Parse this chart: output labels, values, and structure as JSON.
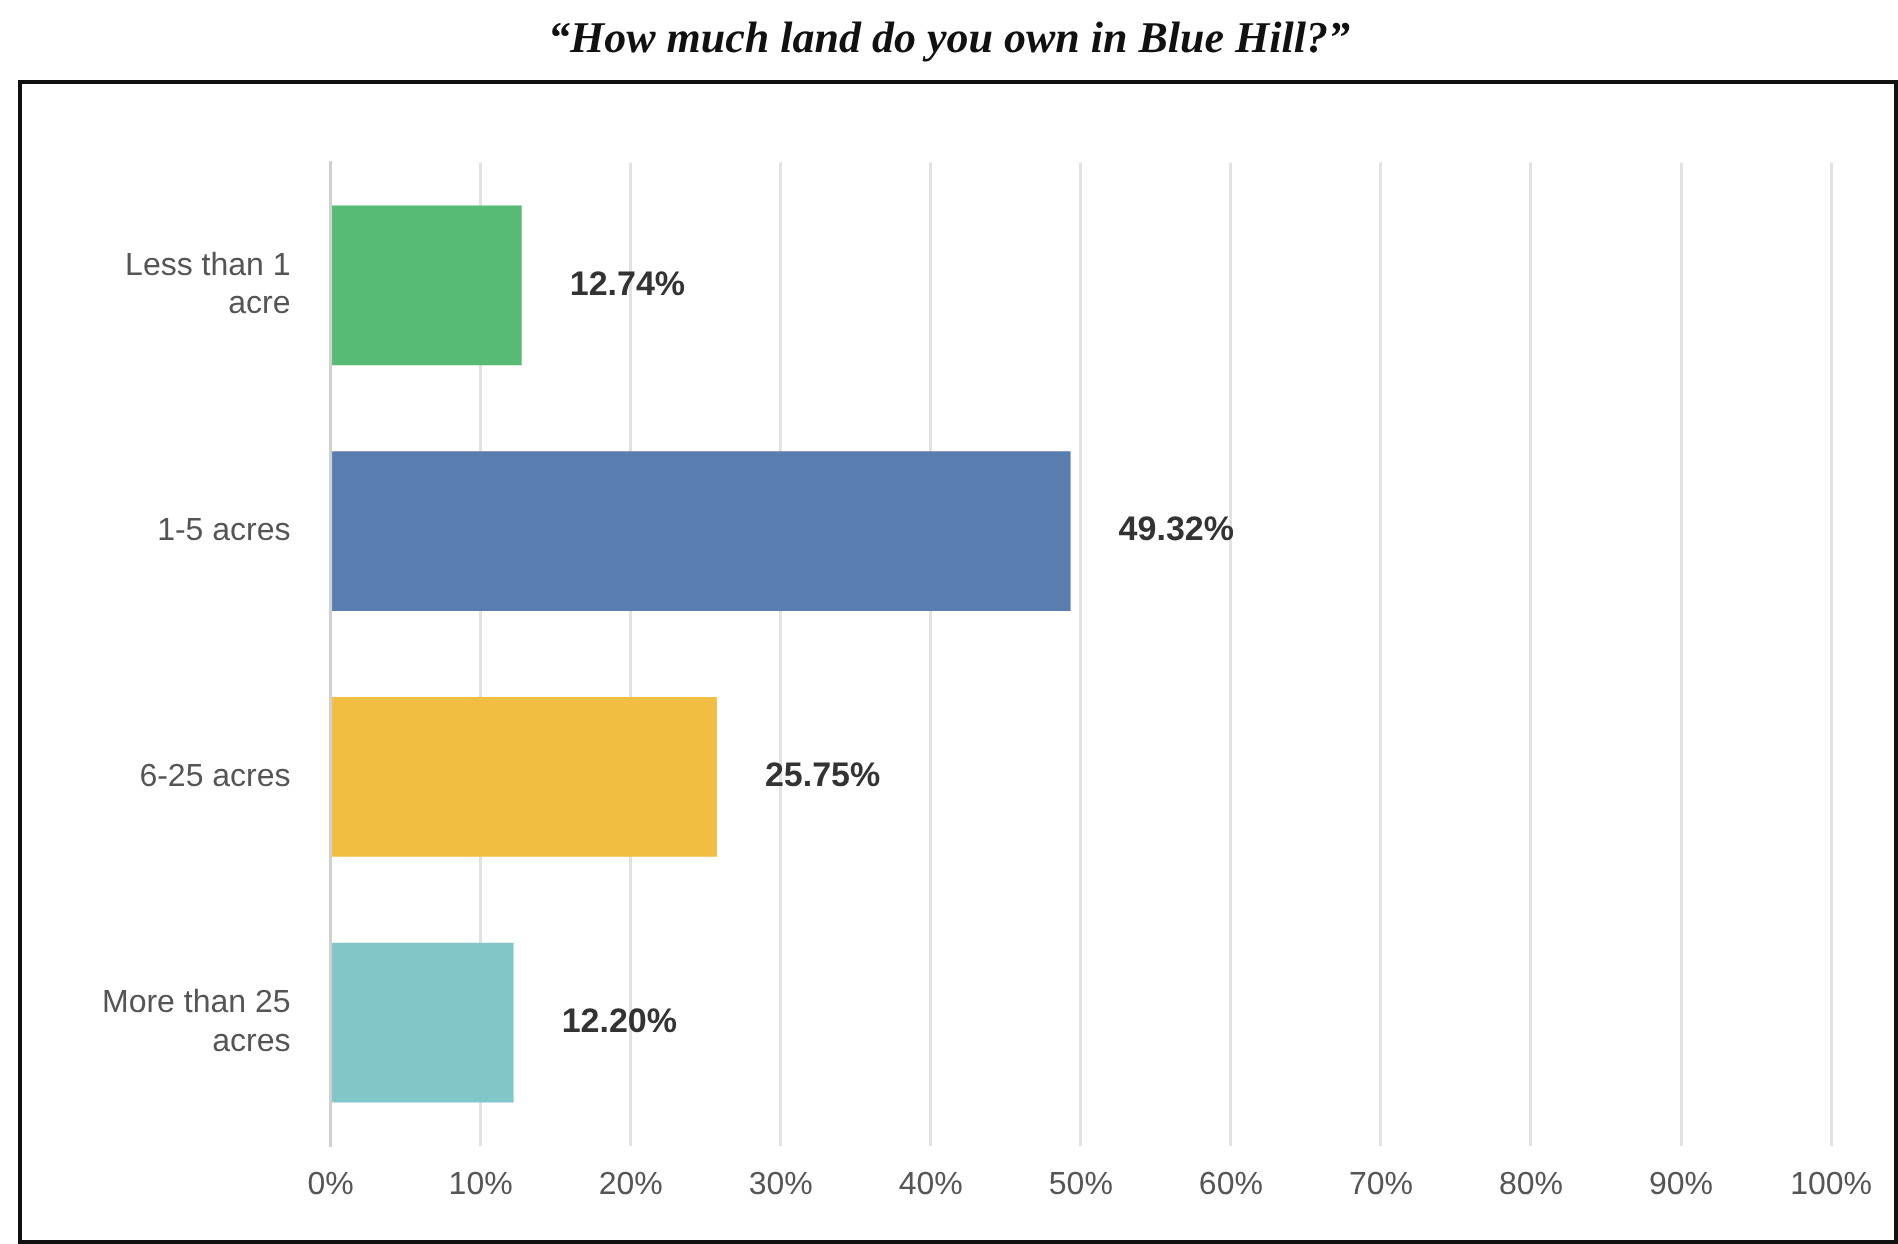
{
  "chart_data": {
    "type": "bar",
    "orientation": "horizontal",
    "title": "“How much land do you own in Blue Hill?”",
    "categories": [
      "Less than 1 acre",
      "1-5 acres",
      "6-25 acres",
      "More than 25 acres"
    ],
    "values": [
      12.74,
      49.32,
      25.75,
      12.2
    ],
    "colors": [
      "#57bb75",
      "#5a7db0",
      "#f2be42",
      "#81c7c9"
    ],
    "value_labels": [
      "12.74%",
      "49.32%",
      "25.75%",
      "12.20%"
    ],
    "xlim": [
      0,
      100
    ],
    "xticks": [
      {
        "value": 0,
        "label": "0%"
      },
      {
        "value": 10,
        "label": "10%"
      },
      {
        "value": 20,
        "label": "20%"
      },
      {
        "value": 30,
        "label": "30%"
      },
      {
        "value": 40,
        "label": "40%"
      },
      {
        "value": 50,
        "label": "50%"
      },
      {
        "value": 60,
        "label": "60%"
      },
      {
        "value": 70,
        "label": "70%"
      },
      {
        "value": 80,
        "label": "80%"
      },
      {
        "value": 90,
        "label": "90%"
      },
      {
        "value": 100,
        "label": "100%"
      }
    ],
    "grid": "x",
    "legend": false
  }
}
